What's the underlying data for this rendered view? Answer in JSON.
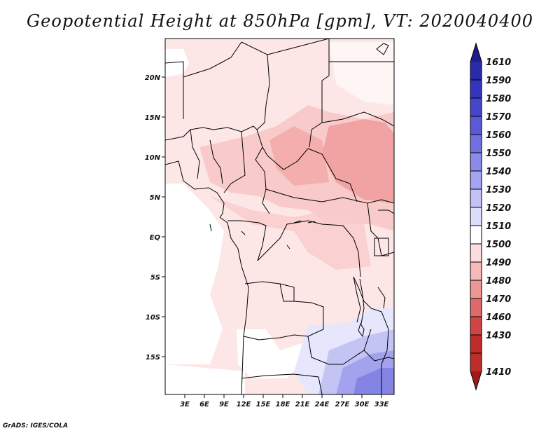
{
  "title": "Geopotential Height at 850hPa [gpm], VT: 2020040400",
  "credit": "GrADS: IGES/COLA",
  "map": {
    "lat_labels": [
      "20N",
      "15N",
      "10N",
      "5N",
      "EQ",
      "5S",
      "10S",
      "15S"
    ],
    "lon_labels": [
      "3E",
      "6E",
      "9E",
      "12E",
      "15E",
      "18E",
      "21E",
      "24E",
      "27E",
      "30E",
      "33E"
    ]
  },
  "colorbar": {
    "labels": [
      "1610",
      "1590",
      "1580",
      "1570",
      "1560",
      "1550",
      "1540",
      "1530",
      "1520",
      "1510",
      "1500",
      "1490",
      "1480",
      "1470",
      "1460",
      "1430",
      "1410"
    ],
    "colors": [
      "#1e1e8a",
      "#2a2aa8",
      "#3434c0",
      "#4646cc",
      "#5a5ad8",
      "#7070e0",
      "#8a8ae8",
      "#a4a4f0",
      "#c2c2f6",
      "#dedefc",
      "#ffffff",
      "#fcdcdc",
      "#f6b8b8",
      "#ee9696",
      "#e06a6a",
      "#d24444",
      "#be2c2c",
      "#a01a1a"
    ]
  }
}
